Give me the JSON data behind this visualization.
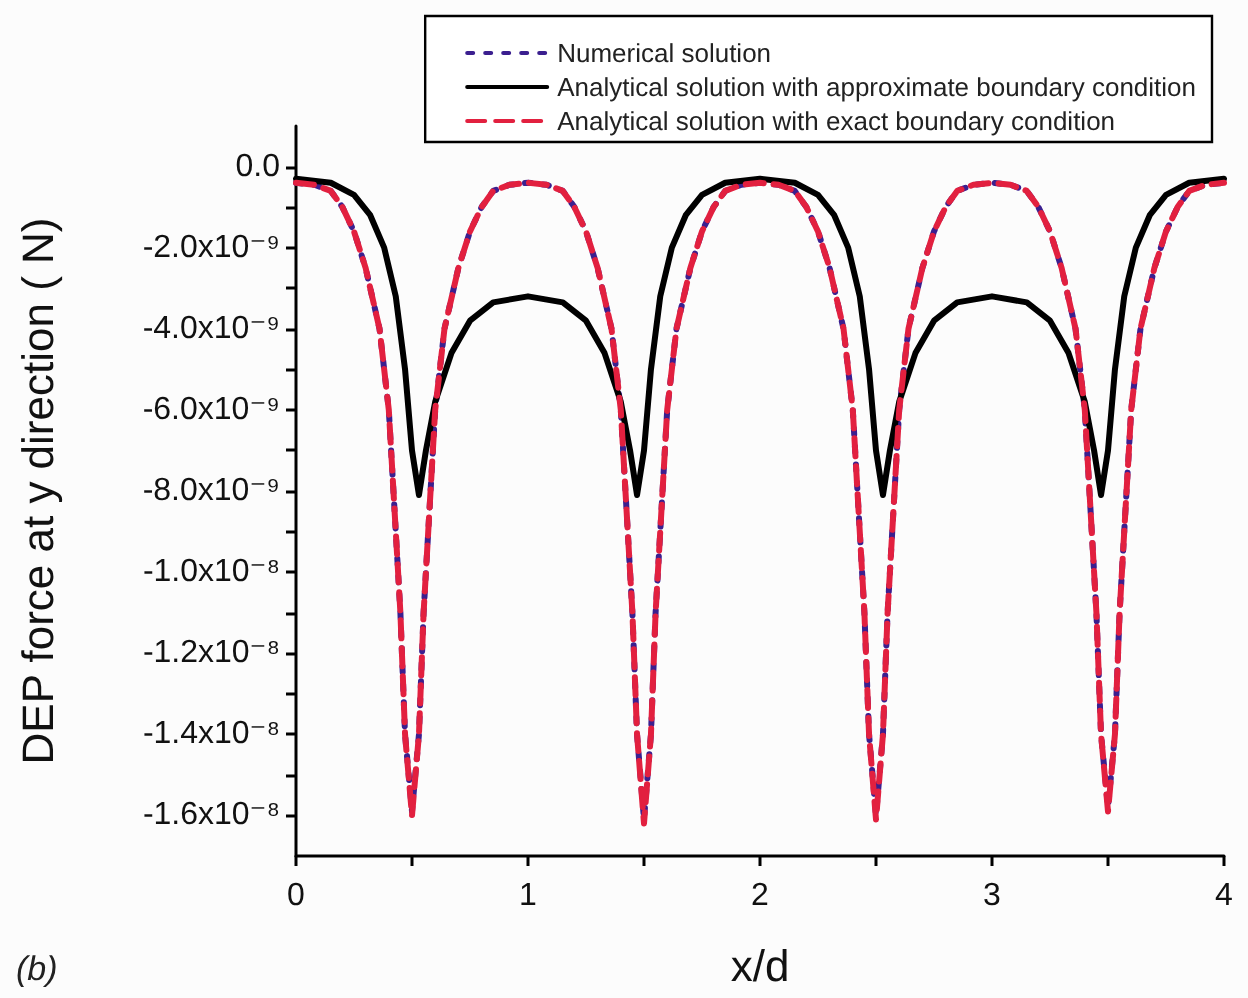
{
  "chart_data": {
    "type": "line",
    "xlabel": "x/d",
    "ylabel": "DEP force at y direction ( N)",
    "annotations": [
      "(b)"
    ],
    "legend": "top right",
    "grid": false,
    "xlim": [
      0,
      4
    ],
    "xticks": [
      0,
      {
        "value": 0.5,
        "label": null
      },
      1,
      {
        "value": 1.5,
        "label": null
      },
      2,
      {
        "value": 2.5,
        "label": null
      },
      3,
      {
        "value": 3.5,
        "label": null
      },
      4
    ],
    "ylim": [
      -1.7e-08,
      1e-09
    ],
    "yticks": [
      {
        "value": 0,
        "label": "0.0"
      },
      {
        "value": -1e-09,
        "label": null
      },
      {
        "value": -2e-09,
        "label": "-2.0x10⁻⁹"
      },
      {
        "value": -3e-09,
        "label": null
      },
      {
        "value": -4e-09,
        "label": "-4.0x10⁻⁹"
      },
      {
        "value": -5e-09,
        "label": null
      },
      {
        "value": -6e-09,
        "label": "-6.0x10⁻⁹"
      },
      {
        "value": -7e-09,
        "label": null
      },
      {
        "value": -8e-09,
        "label": "-8.0x10⁻⁹"
      },
      {
        "value": -9e-09,
        "label": null
      },
      {
        "value": -1e-08,
        "label": "-1.0x10⁻⁸"
      },
      {
        "value": -1.1e-08,
        "label": null
      },
      {
        "value": -1.2e-08,
        "label": "-1.2x10⁻⁸"
      },
      {
        "value": -1.3e-08,
        "label": null
      },
      {
        "value": -1.4e-08,
        "label": "-1.4x10⁻⁸"
      },
      {
        "value": -1.5e-08,
        "label": null
      },
      {
        "value": -1.6e-08,
        "label": "-1.6x10⁻⁸"
      }
    ],
    "series": [
      {
        "name": "Numerical solution",
        "color": "#3b1f8f",
        "line_style": "dotted",
        "x": [
          0,
          0.08,
          0.15,
          0.2,
          0.25,
          0.3,
          0.36,
          0.4,
          0.42,
          0.45,
          0.47,
          0.5,
          0.53,
          0.55,
          0.58,
          0.6,
          0.64,
          0.7,
          0.75,
          0.8,
          0.85,
          0.92,
          1,
          1.08,
          1.15,
          1.2,
          1.25,
          1.3,
          1.36,
          1.4,
          1.42,
          1.45,
          1.47,
          1.5,
          1.53,
          1.55,
          1.58,
          1.6,
          1.64,
          1.7,
          1.75,
          1.8,
          1.85,
          1.92,
          2,
          2.08,
          2.15,
          2.2,
          2.25,
          2.3,
          2.36,
          2.4,
          2.42,
          2.45,
          2.47,
          2.5,
          2.53,
          2.55,
          2.58,
          2.6,
          2.64,
          2.7,
          2.75,
          2.8,
          2.85,
          2.92,
          3,
          3.08,
          3.15,
          3.2,
          3.25,
          3.3,
          3.36,
          3.4,
          3.42,
          3.45,
          3.47,
          3.5,
          3.53,
          3.55,
          3.58,
          3.6,
          3.64,
          3.7,
          3.75,
          3.8,
          3.85,
          3.92,
          4
        ],
        "values": [
          -4e-10,
          -4.5e-10,
          -6e-10,
          -1e-09,
          -1.6e-09,
          -2.5e-09,
          -4e-09,
          -6e-09,
          -8e-09,
          -1.1e-08,
          -1.4e-08,
          -1.59e-08,
          -1.4e-08,
          -1.1e-08,
          -8e-09,
          -6e-09,
          -4e-09,
          -2.5e-09,
          -1.6e-09,
          -1e-09,
          -6e-10,
          -4.5e-10,
          -4e-10,
          -4.5e-10,
          -6e-10,
          -1e-09,
          -1.6e-09,
          -2.5e-09,
          -4e-09,
          -6e-09,
          -8e-09,
          -1.1e-08,
          -1.4e-08,
          -1.61e-08,
          -1.4e-08,
          -1.1e-08,
          -8e-09,
          -6e-09,
          -4e-09,
          -2.5e-09,
          -1.6e-09,
          -1e-09,
          -6e-10,
          -4.5e-10,
          -4e-10,
          -4.5e-10,
          -6e-10,
          -1e-09,
          -1.6e-09,
          -2.5e-09,
          -4e-09,
          -6e-09,
          -8e-09,
          -1.1e-08,
          -1.4e-08,
          -1.6e-08,
          -1.4e-08,
          -1.1e-08,
          -8e-09,
          -6e-09,
          -4e-09,
          -2.5e-09,
          -1.6e-09,
          -1e-09,
          -6e-10,
          -4.5e-10,
          -4e-10,
          -4.5e-10,
          -6e-10,
          -1e-09,
          -1.6e-09,
          -2.5e-09,
          -4e-09,
          -6e-09,
          -8e-09,
          -1.1e-08,
          -1.4e-08,
          -1.58e-08,
          -1.4e-08,
          -1.1e-08,
          -8e-09,
          -6e-09,
          -4e-09,
          -2.5e-09,
          -1.6e-09,
          -1e-09,
          -6e-10,
          -4.5e-10,
          -4e-10
        ]
      },
      {
        "name": "Analytical solution with approximate boundary condition",
        "color": "#000000",
        "line_style": "solid",
        "x": [
          0,
          0.15,
          0.25,
          0.32,
          0.38,
          0.43,
          0.47,
          0.5,
          0.53,
          0.56,
          0.6,
          0.67,
          0.75,
          0.85,
          1,
          1.15,
          1.25,
          1.33,
          1.4,
          1.44,
          1.47,
          1.5,
          1.53,
          1.57,
          1.62,
          1.68,
          1.75,
          1.85,
          2,
          2.15,
          2.25,
          2.32,
          2.38,
          2.43,
          2.47,
          2.5,
          2.53,
          2.56,
          2.6,
          2.67,
          2.75,
          2.85,
          3,
          3.15,
          3.25,
          3.33,
          3.4,
          3.44,
          3.47,
          3.5,
          3.53,
          3.57,
          3.62,
          3.68,
          3.75,
          3.85,
          4
        ],
        "values": [
          -3e-10,
          -4e-10,
          -7e-10,
          -1.2e-09,
          -2e-09,
          -3.2e-09,
          -5e-09,
          -7e-09,
          -8.1e-09,
          -7e-09,
          -5.8e-09,
          -4.6e-09,
          -3.8e-09,
          -3.35e-09,
          -3.2e-09,
          -3.35e-09,
          -3.8e-09,
          -4.6e-09,
          -5.8e-09,
          -7e-09,
          -8.1e-09,
          -7e-09,
          -5e-09,
          -3.2e-09,
          -2e-09,
          -1.2e-09,
          -7e-10,
          -4e-10,
          -3e-10,
          -4e-10,
          -7e-10,
          -1.2e-09,
          -2e-09,
          -3.2e-09,
          -5e-09,
          -7e-09,
          -8.1e-09,
          -7e-09,
          -5.8e-09,
          -4.6e-09,
          -3.8e-09,
          -3.35e-09,
          -3.2e-09,
          -3.35e-09,
          -3.8e-09,
          -4.6e-09,
          -5.8e-09,
          -7e-09,
          -8.1e-09,
          -7e-09,
          -5e-09,
          -3.2e-09,
          -2e-09,
          -1.2e-09,
          -7e-10,
          -4e-10,
          -3e-10
        ]
      },
      {
        "name": "Analytical solution with exact boundary condition",
        "color": "#e2203f",
        "line_style": "dashed",
        "x": [
          0,
          0.08,
          0.15,
          0.2,
          0.25,
          0.3,
          0.36,
          0.4,
          0.42,
          0.45,
          0.47,
          0.5,
          0.53,
          0.55,
          0.58,
          0.6,
          0.64,
          0.7,
          0.75,
          0.8,
          0.85,
          0.92,
          1,
          1.08,
          1.15,
          1.2,
          1.25,
          1.3,
          1.36,
          1.4,
          1.42,
          1.45,
          1.47,
          1.5,
          1.53,
          1.55,
          1.58,
          1.6,
          1.64,
          1.7,
          1.75,
          1.8,
          1.85,
          1.92,
          2,
          2.08,
          2.15,
          2.2,
          2.25,
          2.3,
          2.36,
          2.4,
          2.42,
          2.45,
          2.47,
          2.5,
          2.53,
          2.55,
          2.58,
          2.6,
          2.64,
          2.7,
          2.75,
          2.8,
          2.85,
          2.92,
          3,
          3.08,
          3.15,
          3.2,
          3.25,
          3.3,
          3.36,
          3.4,
          3.42,
          3.45,
          3.47,
          3.5,
          3.53,
          3.55,
          3.58,
          3.6,
          3.64,
          3.7,
          3.75,
          3.8,
          3.85,
          3.92,
          4
        ],
        "values": [
          -4e-10,
          -4.5e-10,
          -6e-10,
          -1e-09,
          -1.6e-09,
          -2.5e-09,
          -4e-09,
          -6e-09,
          -8e-09,
          -1.1e-08,
          -1.4e-08,
          -1.6e-08,
          -1.4e-08,
          -1.1e-08,
          -8e-09,
          -6e-09,
          -4e-09,
          -2.5e-09,
          -1.6e-09,
          -1e-09,
          -6e-10,
          -4.5e-10,
          -4e-10,
          -4.5e-10,
          -6e-10,
          -1e-09,
          -1.6e-09,
          -2.5e-09,
          -4e-09,
          -6e-09,
          -8e-09,
          -1.1e-08,
          -1.4e-08,
          -1.62e-08,
          -1.4e-08,
          -1.1e-08,
          -8e-09,
          -6e-09,
          -4e-09,
          -2.5e-09,
          -1.6e-09,
          -1e-09,
          -6e-10,
          -4.5e-10,
          -4e-10,
          -4.5e-10,
          -6e-10,
          -1e-09,
          -1.6e-09,
          -2.5e-09,
          -4e-09,
          -6e-09,
          -8e-09,
          -1.1e-08,
          -1.4e-08,
          -1.61e-08,
          -1.4e-08,
          -1.1e-08,
          -8e-09,
          -6e-09,
          -4e-09,
          -2.5e-09,
          -1.6e-09,
          -1e-09,
          -6e-10,
          -4.5e-10,
          -4e-10,
          -4.5e-10,
          -6e-10,
          -1e-09,
          -1.6e-09,
          -2.5e-09,
          -4e-09,
          -6e-09,
          -8e-09,
          -1.1e-08,
          -1.4e-08,
          -1.59e-08,
          -1.4e-08,
          -1.1e-08,
          -8e-09,
          -6e-09,
          -4e-09,
          -2.5e-09,
          -1.6e-09,
          -1e-09,
          -6e-10,
          -4.5e-10,
          -4e-10
        ]
      }
    ]
  }
}
